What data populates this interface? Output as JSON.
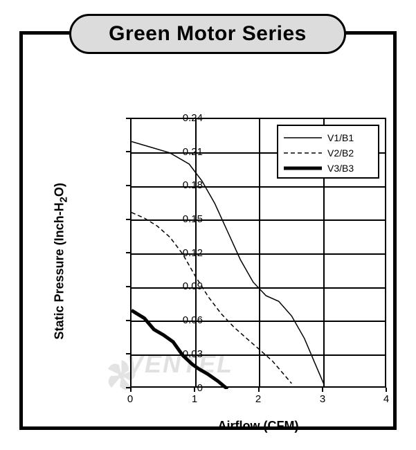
{
  "title": "Green Motor Series",
  "chart": {
    "type": "line",
    "xlabel": "Airflow (CFM)",
    "ylabel": "Static Pressure (Inch-H₂O)",
    "ylabel_plain": "Static Pressure (Inch-H2O)",
    "xlim": [
      0,
      4
    ],
    "ylim": [
      0,
      0.24
    ],
    "xtick_step": 1,
    "ytick_step": 0.03,
    "xticks": [
      0,
      1,
      2,
      3,
      4
    ],
    "yticks": [
      0,
      0.03,
      0.06,
      0.09,
      0.12,
      0.15,
      0.18,
      0.21,
      0.24
    ],
    "ytick_labels": [
      "0",
      "0.03",
      "0.06",
      "0.09",
      "0.12",
      "0.15",
      "0.18",
      "0.21",
      "0.24"
    ],
    "background_color": "#ffffff",
    "grid_color": "#000000",
    "border_color": "#000000",
    "label_fontsize": 18,
    "tick_fontsize": 15,
    "series": [
      {
        "name": "V1/B1",
        "line_style": "solid",
        "line_width": 1.5,
        "color": "#000000",
        "points": [
          [
            0,
            0.22
          ],
          [
            0.3,
            0.215
          ],
          [
            0.6,
            0.21
          ],
          [
            0.9,
            0.2
          ],
          [
            1.1,
            0.185
          ],
          [
            1.3,
            0.165
          ],
          [
            1.5,
            0.14
          ],
          [
            1.7,
            0.115
          ],
          [
            1.9,
            0.095
          ],
          [
            2.1,
            0.083
          ],
          [
            2.3,
            0.078
          ],
          [
            2.5,
            0.065
          ],
          [
            2.7,
            0.045
          ],
          [
            2.85,
            0.025
          ],
          [
            3.0,
            0.005
          ]
        ]
      },
      {
        "name": "V2/B2",
        "line_style": "dashed",
        "line_width": 1.5,
        "color": "#000000",
        "dash_pattern": "6,4",
        "points": [
          [
            0,
            0.157
          ],
          [
            0.2,
            0.152
          ],
          [
            0.4,
            0.145
          ],
          [
            0.6,
            0.135
          ],
          [
            0.8,
            0.12
          ],
          [
            1.0,
            0.1
          ],
          [
            1.2,
            0.082
          ],
          [
            1.4,
            0.067
          ],
          [
            1.6,
            0.055
          ],
          [
            1.8,
            0.045
          ],
          [
            2.0,
            0.035
          ],
          [
            2.2,
            0.025
          ],
          [
            2.35,
            0.015
          ],
          [
            2.5,
            0.005
          ]
        ]
      },
      {
        "name": "V3/B3",
        "line_style": "solid",
        "line_width": 5,
        "color": "#000000",
        "points": [
          [
            0,
            0.07
          ],
          [
            0.2,
            0.063
          ],
          [
            0.35,
            0.053
          ],
          [
            0.5,
            0.048
          ],
          [
            0.65,
            0.042
          ],
          [
            0.8,
            0.03
          ],
          [
            0.95,
            0.022
          ],
          [
            1.05,
            0.018
          ],
          [
            1.2,
            0.013
          ],
          [
            1.35,
            0.007
          ],
          [
            1.5,
            0.0
          ]
        ]
      }
    ],
    "legend": {
      "position": "top-right",
      "border_color": "#000000",
      "background_color": "#ffffff",
      "fontsize": 14,
      "items": [
        "V1/B1",
        "V2/B2",
        "V3/B3"
      ]
    }
  },
  "frame": {
    "border_color": "#000000",
    "border_width": 5
  },
  "title_pill": {
    "background_color": "#dcdcdc",
    "border_color": "#000000",
    "border_width": 3,
    "fontsize": 30
  },
  "watermark": {
    "text": "VENTEL",
    "color": "#e1e1e1"
  }
}
